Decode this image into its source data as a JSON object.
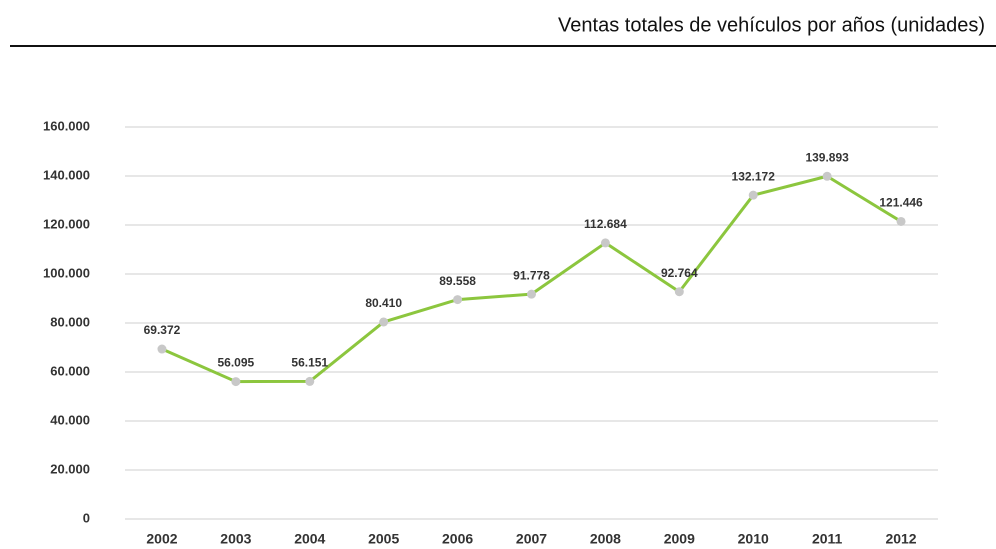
{
  "chart_data": {
    "type": "line",
    "title": "Ventas totales de vehículos por años (unidades)",
    "categories": [
      "2002",
      "2003",
      "2004",
      "2005",
      "2006",
      "2007",
      "2008",
      "2009",
      "2010",
      "2011",
      "2012"
    ],
    "series": [
      {
        "name": "Ventas",
        "color": "#8cc63e",
        "values": [
          69372,
          56095,
          56151,
          80410,
          89558,
          91778,
          112684,
          92764,
          132172,
          139893,
          121446
        ],
        "value_labels": [
          "69.372",
          "56.095",
          "56.151",
          "80.410",
          "89.558",
          "91.778",
          "112.684",
          "92.764",
          "132.172",
          "139.893",
          "121.446"
        ]
      }
    ],
    "marker_color": "#c8c8c8",
    "ylim": [
      0,
      160000
    ],
    "yticks": [
      0,
      {
        "value": 20000,
        "label": "20.000"
      },
      {
        "value": 40000,
        "label": "40.000"
      },
      {
        "value": 60000,
        "label": "60.000"
      },
      {
        "value": 80000,
        "label": "80.000"
      },
      {
        "value": 100000,
        "label": "100.000"
      },
      {
        "value": 120000,
        "label": "120.000"
      },
      {
        "value": 140000,
        "label": "140.000"
      },
      {
        "value": 160000,
        "label": "160.000"
      }
    ],
    "grid": true
  }
}
